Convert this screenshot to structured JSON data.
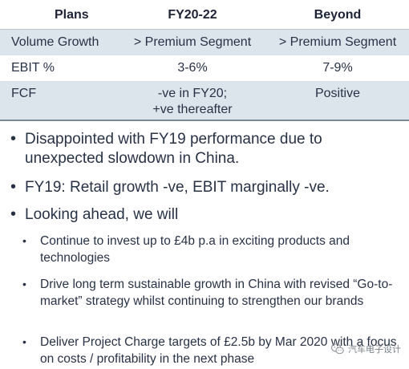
{
  "table": {
    "headers": [
      "Plans",
      "FY20-22",
      "Beyond"
    ],
    "rows": [
      {
        "label": "Volume Growth",
        "fy20_22": [
          "> Premium Segment"
        ],
        "beyond": "> Premium Segment"
      },
      {
        "label": "EBIT %",
        "fy20_22": [
          "3-6%"
        ],
        "beyond": "7-9%"
      },
      {
        "label": "FCF",
        "fy20_22": [
          "-ve in FY20;",
          "+ve thereafter"
        ],
        "beyond": "Positive"
      }
    ]
  },
  "bullets": [
    {
      "text": "Disappointed with FY19 performance due to unexpected slowdown in China."
    },
    {
      "text": "FY19: Retail growth -ve, EBIT marginally -ve."
    },
    {
      "text": "Looking ahead, we will"
    }
  ],
  "sub_bullets": [
    {
      "text": "Continue to invest up to £4b p.a in exciting products and technologies"
    },
    {
      "text": "Drive long term sustainable growth in China with revised “Go-to-market” strategy whilst continuing to strengthen our brands"
    },
    {
      "text": "Deliver Project Charge targets of £2.5b by Mar 2020 with a focus on costs / profitability in the next phase"
    }
  ],
  "watermark": {
    "text": "汽车电子设计",
    "icon": "wechat-logo-icon"
  }
}
